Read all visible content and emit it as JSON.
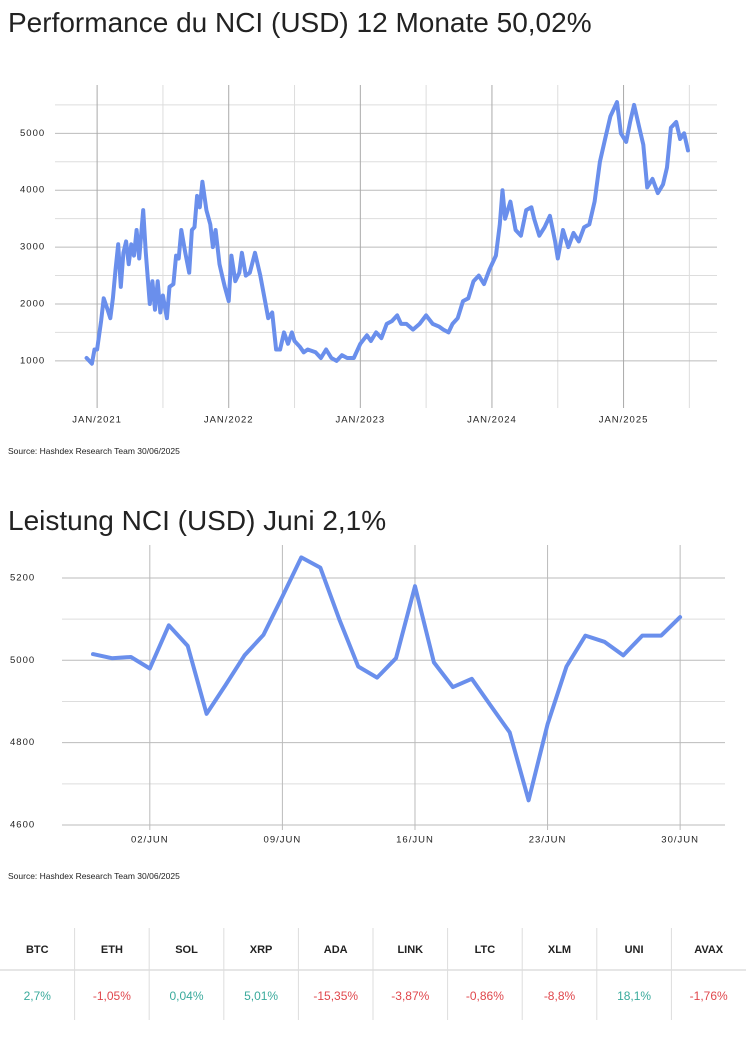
{
  "chart_data": [
    {
      "type": "line",
      "title": "Performance du NCI (USD) 12 Monate 50,02%",
      "source": "Source: Hashdex Research Team 30/06/2025",
      "x": [
        2020.92,
        2020.96,
        2020.98,
        2021.0,
        2021.03,
        2021.05,
        2021.08,
        2021.1,
        2021.12,
        2021.14,
        2021.16,
        2021.18,
        2021.2,
        2021.22,
        2021.24,
        2021.26,
        2021.28,
        2021.3,
        2021.32,
        2021.35,
        2021.37,
        2021.4,
        2021.42,
        2021.44,
        2021.46,
        2021.48,
        2021.5,
        2021.53,
        2021.55,
        2021.58,
        2021.6,
        2021.62,
        2021.64,
        2021.67,
        2021.7,
        2021.72,
        2021.74,
        2021.76,
        2021.78,
        2021.8,
        2021.83,
        2021.86,
        2021.88,
        2021.9,
        2021.93,
        2021.95,
        2021.97,
        2022.0,
        2022.02,
        2022.05,
        2022.08,
        2022.1,
        2022.13,
        2022.16,
        2022.2,
        2022.24,
        2022.28,
        2022.3,
        2022.33,
        2022.36,
        2022.39,
        2022.42,
        2022.45,
        2022.48,
        2022.5,
        2022.54,
        2022.57,
        2022.6,
        2022.66,
        2022.7,
        2022.74,
        2022.78,
        2022.82,
        2022.86,
        2022.9,
        2022.95,
        2023.0,
        2023.05,
        2023.08,
        2023.12,
        2023.16,
        2023.2,
        2023.24,
        2023.28,
        2023.31,
        2023.35,
        2023.4,
        2023.45,
        2023.5,
        2023.55,
        2023.6,
        2023.63,
        2023.67,
        2023.7,
        2023.74,
        2023.78,
        2023.82,
        2023.86,
        2023.9,
        2023.94,
        2023.98,
        2024.03,
        2024.06,
        2024.08,
        2024.1,
        2024.14,
        2024.18,
        2024.22,
        2024.26,
        2024.3,
        2024.32,
        2024.36,
        2024.4,
        2024.44,
        2024.48,
        2024.5,
        2024.54,
        2024.58,
        2024.62,
        2024.66,
        2024.7,
        2024.74,
        2024.78,
        2024.82,
        2024.86,
        2024.9,
        2024.95,
        2024.98,
        2025.02,
        2025.05,
        2025.08,
        2025.12,
        2025.15,
        2025.18,
        2025.22,
        2025.26,
        2025.3,
        2025.33,
        2025.36,
        2025.4,
        2025.43,
        2025.46,
        2025.49
      ],
      "series": [
        {
          "name": "NCI",
          "color": "#6a8fec",
          "values": [
            1050,
            950,
            1200,
            1200,
            1700,
            2100,
            1900,
            1750,
            2100,
            2600,
            3050,
            2300,
            2900,
            3100,
            2700,
            3050,
            2850,
            3300,
            2800,
            3650,
            2900,
            2000,
            2400,
            1900,
            2400,
            1850,
            2150,
            1750,
            2300,
            2350,
            2850,
            2800,
            3300,
            2900,
            2550,
            3300,
            3350,
            3900,
            3700,
            4150,
            3650,
            3400,
            3000,
            3300,
            2700,
            2500,
            2300,
            2050,
            2850,
            2400,
            2550,
            2900,
            2500,
            2550,
            2900,
            2500,
            2000,
            1750,
            1850,
            1200,
            1200,
            1500,
            1300,
            1500,
            1350,
            1250,
            1150,
            1200,
            1150,
            1050,
            1200,
            1050,
            1000,
            1100,
            1050,
            1050,
            1300,
            1450,
            1350,
            1500,
            1400,
            1650,
            1700,
            1800,
            1650,
            1650,
            1550,
            1650,
            1800,
            1650,
            1600,
            1550,
            1500,
            1650,
            1750,
            2050,
            2100,
            2400,
            2500,
            2350,
            2600,
            2850,
            3400,
            4000,
            3500,
            3800,
            3300,
            3200,
            3650,
            3700,
            3500,
            3200,
            3350,
            3550,
            3100,
            2800,
            3300,
            3000,
            3250,
            3100,
            3350,
            3400,
            3800,
            4500,
            4900,
            5300,
            5550,
            5000,
            4850,
            5200,
            5500,
            5100,
            4800,
            4050,
            4200,
            3950,
            4100,
            4400,
            5100,
            5200,
            4900,
            5000,
            4700
          ]
        }
      ],
      "xlim": [
        2020.68,
        2025.71
      ],
      "xticks": [
        {
          "value": 2021,
          "label": "JAN/2021"
        },
        {
          "value": 2022,
          "label": "JAN/2022"
        },
        {
          "value": 2023,
          "label": "JAN/2023"
        },
        {
          "value": 2024,
          "label": "JAN/2024"
        },
        {
          "value": 2025,
          "label": "JAN/2025"
        }
      ],
      "minor_xticks": [
        2021.5,
        2022.5,
        2023.5,
        2024.5,
        2025.5
      ],
      "ylim": [
        400,
        5850
      ],
      "yticks": [
        1000,
        2000,
        3000,
        4000,
        5000
      ],
      "minor_yticks": [
        1500,
        2500,
        3500,
        4500,
        5500
      ],
      "grid": true
    },
    {
      "type": "line",
      "title": "Leistung NCI (USD) Juni 2,1%",
      "source": "Source: Hashdex Research Team 30/06/2025",
      "categories": [
        null,
        null,
        null,
        "02/JUN",
        null,
        null,
        null,
        null,
        null,
        null,
        "09/JUN",
        null,
        null,
        null,
        null,
        null,
        null,
        "16/JUN",
        null,
        null,
        null,
        null,
        null,
        null,
        "23/JUN",
        null,
        null,
        null,
        null,
        null,
        null,
        "30/JUN"
      ],
      "series": [
        {
          "name": "NCI",
          "color": "#6a8fec",
          "values": [
            5015,
            5005,
            5008,
            4980,
            5085,
            5035,
            4870,
            4940,
            5012,
            5062,
            5155,
            5250,
            5225,
            5100,
            4985,
            4958,
            5005,
            5180,
            4995,
            4935,
            4955,
            4890,
            4825,
            4660,
            4845,
            4985,
            5060,
            5045,
            5012,
            5060,
            5060,
            5105
          ]
        }
      ],
      "ylim": [
        4600,
        5280
      ],
      "yticks": [
        4600,
        4800,
        5000,
        5200
      ],
      "minor_yticks": [
        4700,
        4900,
        5100
      ],
      "grid": true
    }
  ],
  "table": {
    "headers": [
      "BTC",
      "ETH",
      "SOL",
      "XRP",
      "ADA",
      "LINK",
      "LTC",
      "XLM",
      "UNI",
      "AVAX"
    ],
    "values": [
      "2,7%",
      "-1,05%",
      "0,04%",
      "5,01%",
      "-15,35%",
      "-3,87%",
      "-0,86%",
      "-8,8%",
      "18,1%",
      "-1,76%"
    ],
    "positive_color": "#3aaa9c",
    "negative_color": "#e0474c"
  }
}
